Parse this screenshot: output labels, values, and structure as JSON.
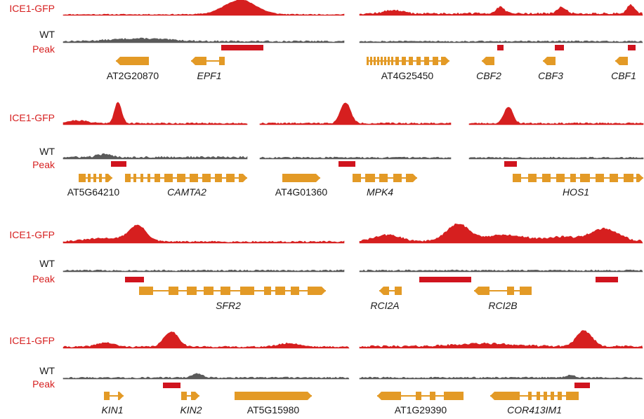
{
  "labels": {
    "ice1": "ICE1-GFP",
    "wt": "WT",
    "peak": "Peak"
  },
  "colors": {
    "ice1": "#d61f1f",
    "wt": "#5a5a5a",
    "peak": "#d0141e",
    "gene": "#e39a26",
    "text": "#1a1a1a"
  },
  "genes": [
    {
      "name": "AT2G20870",
      "italic": false
    },
    {
      "name": "EPF1",
      "italic": true
    },
    {
      "name": "AT4G25450",
      "italic": false
    },
    {
      "name": "CBF2",
      "italic": true
    },
    {
      "name": "CBF3",
      "italic": true
    },
    {
      "name": "CBF1",
      "italic": true
    },
    {
      "name": "AT5G64210",
      "italic": false
    },
    {
      "name": "CAMTA2",
      "italic": true
    },
    {
      "name": "AT4G01360",
      "italic": false
    },
    {
      "name": "MPK4",
      "italic": true
    },
    {
      "name": "HOS1",
      "italic": true
    },
    {
      "name": "SFR2",
      "italic": true
    },
    {
      "name": "RCI2A",
      "italic": true
    },
    {
      "name": "RCI2B",
      "italic": true
    },
    {
      "name": "KIN1",
      "italic": true
    },
    {
      "name": "KIN2",
      "italic": true
    },
    {
      "name": "AT5G15980",
      "italic": false
    },
    {
      "name": "AT1G29390",
      "italic": false
    },
    {
      "name": "COR413IM1",
      "italic": true
    }
  ]
}
